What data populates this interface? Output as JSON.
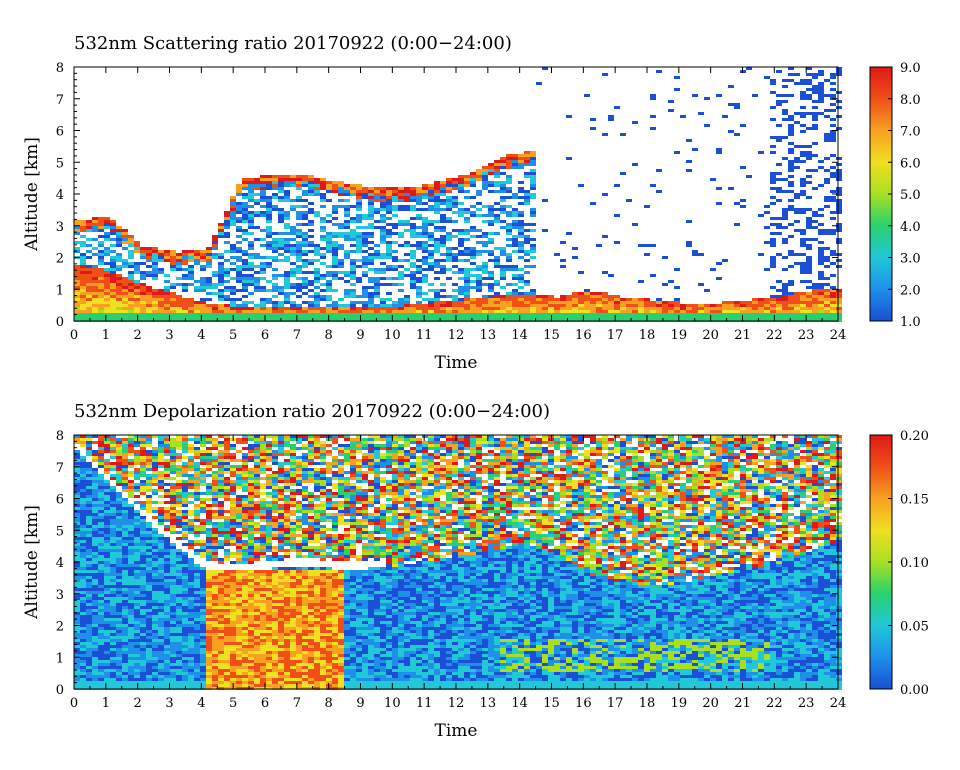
{
  "chart_data": [
    {
      "type": "heatmap",
      "title": "532nm Scattering ratio  20170922 (0:00−24:00)",
      "xlabel": "Time",
      "ylabel": "Altitude [km]",
      "xlim": [
        0,
        24
      ],
      "ylim": [
        0,
        8
      ],
      "x_ticks": [
        "0",
        "1",
        "2",
        "3",
        "4",
        "5",
        "6",
        "7",
        "8",
        "9",
        "10",
        "11",
        "12",
        "13",
        "14",
        "15",
        "16",
        "17",
        "18",
        "19",
        "20",
        "21",
        "22",
        "23",
        "24"
      ],
      "y_ticks": [
        "0",
        "1",
        "2",
        "3",
        "4",
        "5",
        "6",
        "7",
        "8"
      ],
      "colorbar": {
        "range": [
          1.0,
          9.0
        ],
        "ticks": [
          "1.0",
          "2.0",
          "3.0",
          "4.0",
          "5.0",
          "6.0",
          "7.0",
          "8.0",
          "9.0"
        ]
      },
      "colormap": [
        "#1a4fd6",
        "#1e90e8",
        "#20c8d8",
        "#28d070",
        "#a8e020",
        "#f0e020",
        "#f8a020",
        "#f05018",
        "#e01818"
      ],
      "features": {
        "low_cloud_top_km": [
          1.8,
          1.6,
          1.2,
          0.9,
          0.6,
          0.5,
          0.5,
          0.5,
          0.5,
          0.5,
          0.5,
          0.6,
          0.7,
          0.8,
          0.9,
          0.8,
          1.0,
          0.8,
          0.7,
          0.6,
          0.6,
          0.7,
          0.8,
          1.0,
          1.1
        ],
        "upper_layer_base_km": [
          3.0,
          3.1,
          2.2,
          2.0,
          2.1,
          4.3,
          4.4,
          4.4,
          4.2,
          4.0,
          4.0,
          4.2,
          4.5,
          5.0,
          5.2
        ]
      }
    },
    {
      "type": "heatmap",
      "title": "532nm Depolarization ratio  20170922 (0:00−24:00)",
      "xlabel": "Time",
      "ylabel": "Altitude [km]",
      "xlim": [
        0,
        24
      ],
      "ylim": [
        0,
        8
      ],
      "x_ticks": [
        "0",
        "1",
        "2",
        "3",
        "4",
        "5",
        "6",
        "7",
        "8",
        "9",
        "10",
        "11",
        "12",
        "13",
        "14",
        "15",
        "16",
        "17",
        "18",
        "19",
        "20",
        "21",
        "22",
        "23",
        "24"
      ],
      "y_ticks": [
        "0",
        "1",
        "2",
        "3",
        "4",
        "5",
        "6",
        "7",
        "8"
      ],
      "colorbar": {
        "range": [
          0.0,
          0.2
        ],
        "ticks": [
          "0.00",
          "0.05",
          "0.10",
          "0.15",
          "0.20"
        ]
      },
      "colormap": [
        "#1a4fd6",
        "#1e90e8",
        "#20c8d8",
        "#28d070",
        "#a8e020",
        "#f0e020",
        "#f8a020",
        "#f05018",
        "#e01818"
      ],
      "features": {
        "noisy_region_base_km": [
          7.5,
          6.5,
          5.5,
          4.6,
          3.8,
          3.7,
          3.8,
          3.9,
          3.8,
          3.8,
          3.9,
          4.0,
          4.2,
          4.4,
          4.6,
          4.3,
          3.6,
          3.4,
          3.2,
          3.4,
          3.6,
          3.8,
          4.0,
          4.4,
          4.8
        ]
      }
    }
  ]
}
